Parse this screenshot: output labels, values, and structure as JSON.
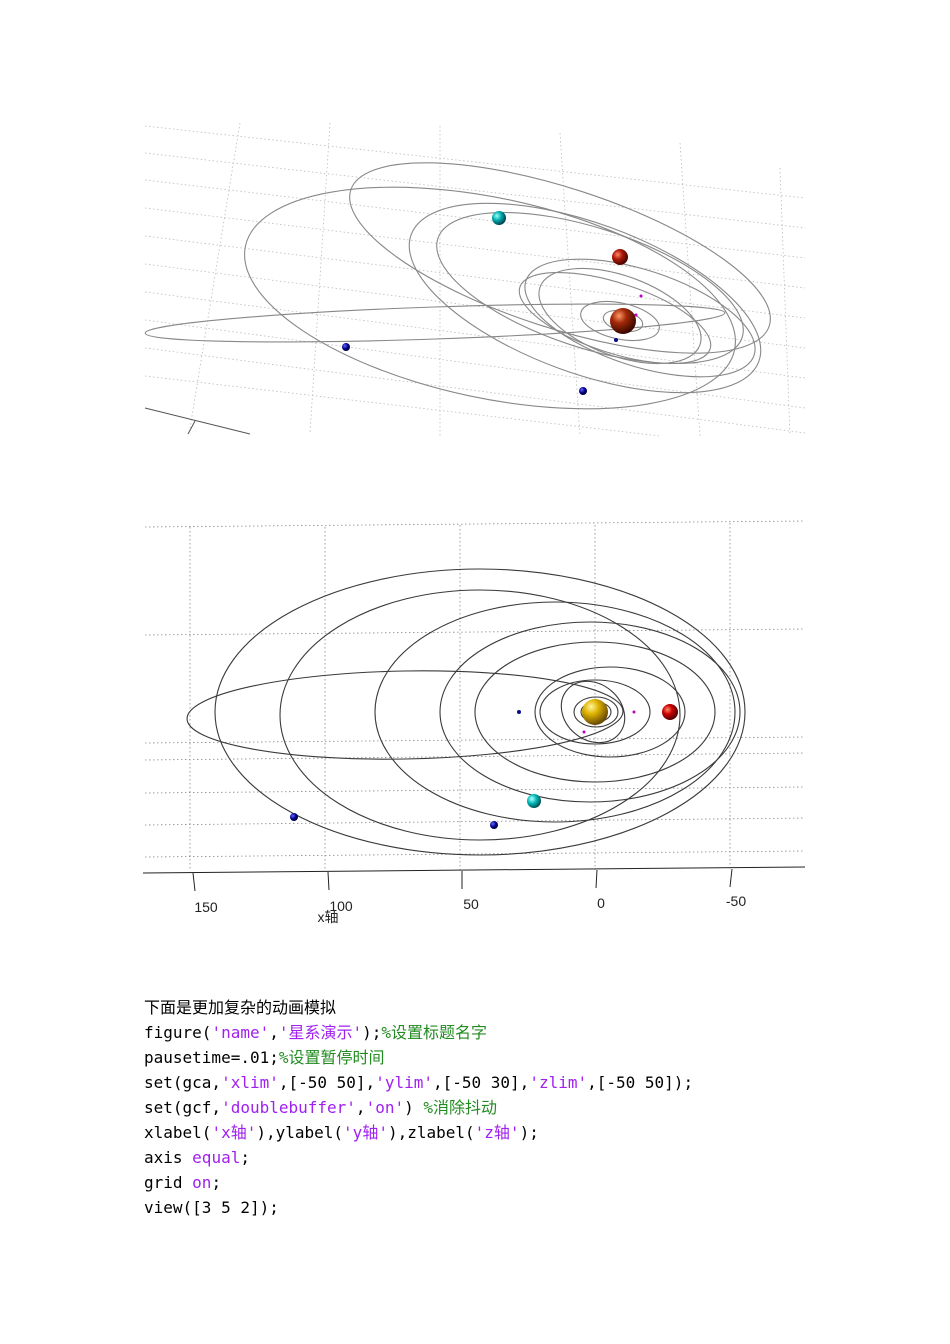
{
  "figure_bottom": {
    "x_ticks": [
      "150",
      "100",
      "50",
      "0",
      "-50"
    ],
    "xlabel": "x轴"
  },
  "intro_text": "下面是更加复杂的动画模拟",
  "code": [
    [
      {
        "t": "figure(",
        "c": ""
      },
      {
        "t": "'name'",
        "c": "str"
      },
      {
        "t": ",",
        "c": ""
      },
      {
        "t": "'星系演示'",
        "c": "str"
      },
      {
        "t": ");",
        "c": ""
      },
      {
        "t": "%设置标题名字",
        "c": "cmt"
      }
    ],
    [
      {
        "t": "pausetime=.01;",
        "c": ""
      },
      {
        "t": "%设置暂停时间",
        "c": "cmt"
      }
    ],
    [
      {
        "t": "set(gca,",
        "c": ""
      },
      {
        "t": "'xlim'",
        "c": "str"
      },
      {
        "t": ",[-50 50],",
        "c": ""
      },
      {
        "t": "'ylim'",
        "c": "str"
      },
      {
        "t": ",[-50 30],",
        "c": ""
      },
      {
        "t": "'zlim'",
        "c": "str"
      },
      {
        "t": ",[-50 50]);",
        "c": ""
      }
    ],
    [
      {
        "t": "set(gcf,",
        "c": ""
      },
      {
        "t": "'doublebuffer'",
        "c": "str"
      },
      {
        "t": ",",
        "c": ""
      },
      {
        "t": "'on'",
        "c": "str"
      },
      {
        "t": ") ",
        "c": ""
      },
      {
        "t": "%消除抖动",
        "c": "cmt"
      }
    ],
    [
      {
        "t": "xlabel(",
        "c": ""
      },
      {
        "t": "'x轴'",
        "c": "str"
      },
      {
        "t": "),ylabel(",
        "c": ""
      },
      {
        "t": "'y轴'",
        "c": "str"
      },
      {
        "t": "),zlabel(",
        "c": ""
      },
      {
        "t": "'z轴'",
        "c": "str"
      },
      {
        "t": ");",
        "c": ""
      }
    ],
    [
      {
        "t": "axis ",
        "c": ""
      },
      {
        "t": "equal",
        "c": "kw"
      },
      {
        "t": ";",
        "c": ""
      }
    ],
    [
      {
        "t": "grid ",
        "c": ""
      },
      {
        "t": "on",
        "c": "kw"
      },
      {
        "t": ";",
        "c": ""
      }
    ],
    [
      {
        "t": "view([3 5 2]);",
        "c": ""
      }
    ]
  ]
}
